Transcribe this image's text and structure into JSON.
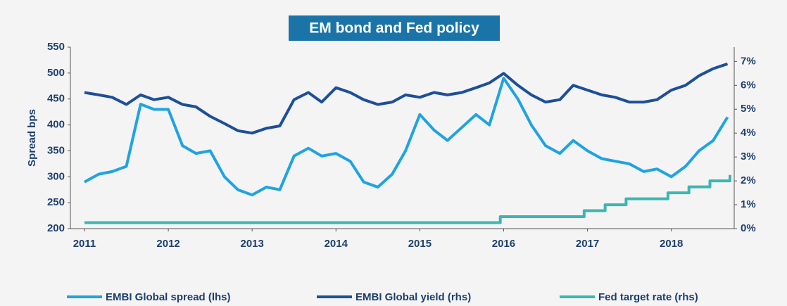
{
  "chart_data": {
    "type": "line",
    "title": "EM bond and Fed policy",
    "y_label": "Spread bps",
    "x": [
      2011,
      2011.17,
      2011.33,
      2011.5,
      2011.67,
      2011.83,
      2012,
      2012.17,
      2012.33,
      2012.5,
      2012.67,
      2012.83,
      2013,
      2013.17,
      2013.33,
      2013.5,
      2013.67,
      2013.83,
      2014,
      2014.17,
      2014.33,
      2014.5,
      2014.67,
      2014.83,
      2015,
      2015.17,
      2015.33,
      2015.5,
      2015.67,
      2015.83,
      2016,
      2016.17,
      2016.33,
      2016.5,
      2016.67,
      2016.83,
      2017,
      2017.17,
      2017.33,
      2017.5,
      2017.67,
      2017.83,
      2018,
      2018.17,
      2018.33,
      2018.5,
      2018.67
    ],
    "series": [
      {
        "name": "EMBI Global spread (lhs)",
        "color": "#1fa3e3",
        "values": [
          290,
          305,
          310,
          320,
          440,
          430,
          430,
          360,
          345,
          350,
          300,
          275,
          265,
          280,
          275,
          340,
          355,
          340,
          345,
          330,
          290,
          280,
          305,
          350,
          420,
          390,
          370,
          395,
          420,
          400,
          490,
          450,
          400,
          360,
          345,
          370,
          350,
          335,
          330,
          325,
          310,
          315,
          300,
          320,
          350,
          370,
          415
        ]
      },
      {
        "name": "EMBI Global yield (rhs)",
        "color": "#1d4f9a",
        "axis": "y2",
        "values": [
          5.7,
          5.6,
          5.5,
          5.2,
          5.6,
          5.4,
          5.5,
          5.2,
          5.1,
          4.7,
          4.4,
          4.1,
          4.0,
          4.2,
          4.3,
          5.4,
          5.7,
          5.3,
          5.9,
          5.7,
          5.4,
          5.2,
          5.3,
          5.6,
          5.5,
          5.7,
          5.6,
          5.7,
          5.9,
          6.1,
          6.5,
          6.0,
          5.6,
          5.3,
          5.4,
          6.0,
          5.8,
          5.6,
          5.5,
          5.3,
          5.3,
          5.4,
          5.8,
          6.0,
          6.4,
          6.7,
          6.9
        ]
      },
      {
        "name": "Fed target rate (rhs)",
        "color": "#3cb6b2",
        "axis": "y2",
        "x": [
          2011,
          2015.96,
          2015.96,
          2016.96,
          2016.96,
          2017.21,
          2017.21,
          2017.46,
          2017.46,
          2017.96,
          2017.96,
          2018.21,
          2018.21,
          2018.46,
          2018.46,
          2018.7,
          2018.7
        ],
        "values": [
          0.25,
          0.25,
          0.5,
          0.5,
          0.75,
          0.75,
          1,
          1,
          1.25,
          1.25,
          1.5,
          1.5,
          1.75,
          1.75,
          2,
          2,
          2.25
        ]
      }
    ],
    "xlim": [
      2011,
      2018.75
    ],
    "xticks": [
      2011,
      2012,
      2013,
      2014,
      2015,
      2016,
      2017,
      2018
    ],
    "ylim": [
      200,
      550
    ],
    "yticks": [
      200,
      250,
      300,
      350,
      400,
      450,
      500,
      550
    ],
    "y2lim": [
      0,
      7.6
    ],
    "y2ticks": [
      {
        "value": 0,
        "label": "0%"
      },
      {
        "value": 1,
        "label": "1%"
      },
      {
        "value": 2,
        "label": "2%"
      },
      {
        "value": 3,
        "label": "3%"
      },
      {
        "value": 4,
        "label": "4%"
      },
      {
        "value": 5,
        "label": "5%"
      },
      {
        "value": 6,
        "label": "6%"
      },
      {
        "value": 7,
        "label": "7%"
      }
    ],
    "legend": "bottom"
  }
}
